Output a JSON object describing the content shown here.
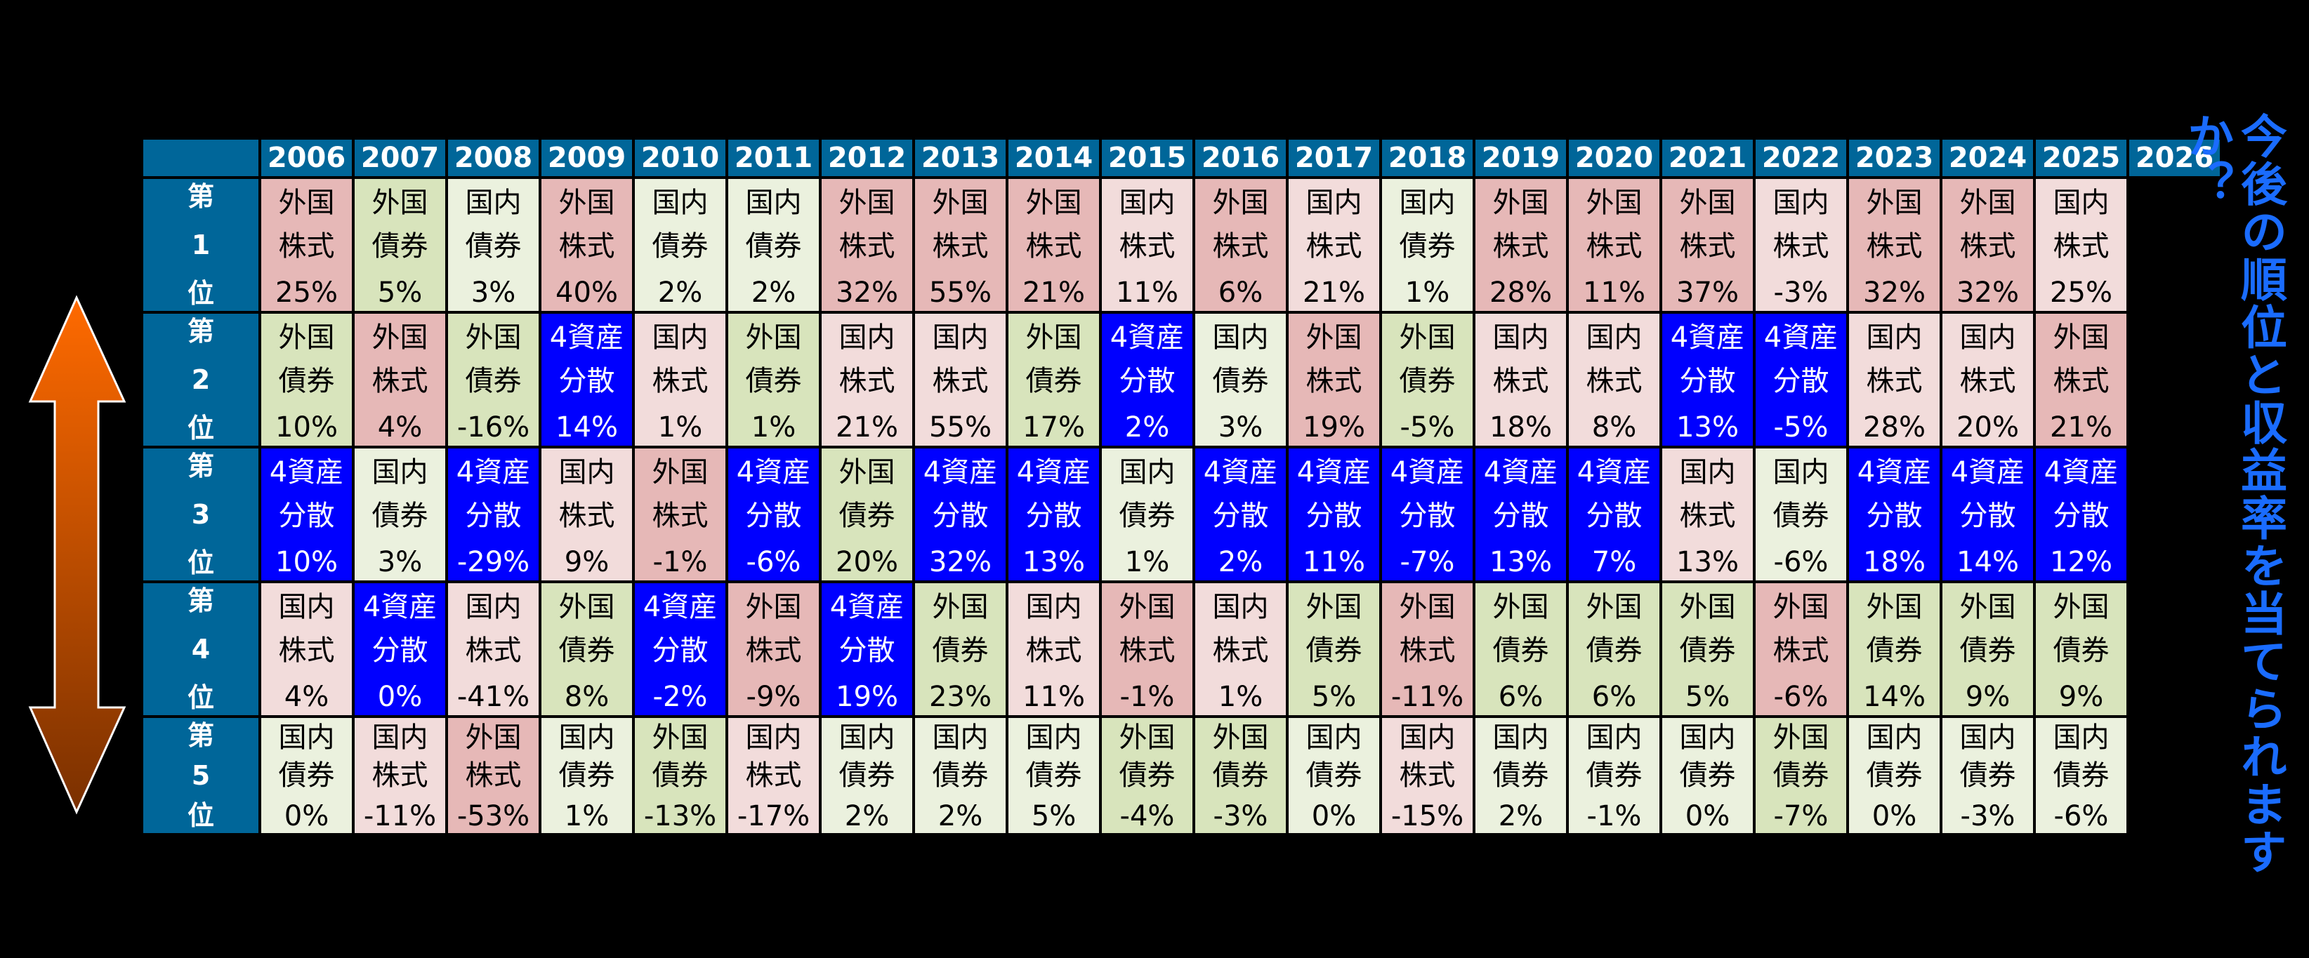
{
  "colors": {
    "header_bg": "#006699",
    "foreign_stock": "#e6b8b7",
    "domestic_stock": "#f2dcdb",
    "foreign_bond": "#d8e4bc",
    "domestic_bond": "#ebf1de",
    "four_asset": "#0000ff",
    "title_text": "#1a6cff",
    "arrow_top": "#ff6a00",
    "arrow_bottom": "#7a3000"
  },
  "side_title": "今後の順位と収益率を当てられますか？",
  "ranks": [
    {
      "c1": "第",
      "c2": "1",
      "c3": "位"
    },
    {
      "c1": "第",
      "c2": "2",
      "c3": "位"
    },
    {
      "c1": "第",
      "c2": "3",
      "c3": "位"
    },
    {
      "c1": "第",
      "c2": "4",
      "c3": "位"
    },
    {
      "c1": "第",
      "c2": "5",
      "c3": "位"
    }
  ],
  "chart_data": {
    "type": "table",
    "title": "今後の順位と収益率を当てられますか？",
    "description": "Annual return ranking of asset classes (1st to 5th) by year",
    "legend": {
      "fs": "外国株式",
      "ds": "国内株式",
      "fb": "外国債券",
      "db": "国内債券",
      "4a": "4資産分散"
    },
    "years": [
      "2006",
      "2007",
      "2008",
      "2009",
      "2010",
      "2011",
      "2012",
      "2013",
      "2014",
      "2015",
      "2016",
      "2017",
      "2018",
      "2019",
      "2020",
      "2021",
      "2022",
      "2023",
      "2024",
      "2025",
      "2026"
    ],
    "rows": [
      {
        "rank": "第1位",
        "cells": [
          {
            "a": "fs",
            "l1": "外国",
            "l2": "株式",
            "v": "25%"
          },
          {
            "a": "fb",
            "l1": "外国",
            "l2": "債券",
            "v": "5%"
          },
          {
            "a": "db",
            "l1": "国内",
            "l2": "債券",
            "v": "3%"
          },
          {
            "a": "fs",
            "l1": "外国",
            "l2": "株式",
            "v": "40%"
          },
          {
            "a": "db",
            "l1": "国内",
            "l2": "債券",
            "v": "2%"
          },
          {
            "a": "db",
            "l1": "国内",
            "l2": "債券",
            "v": "2%"
          },
          {
            "a": "fs",
            "l1": "外国",
            "l2": "株式",
            "v": "32%"
          },
          {
            "a": "fs",
            "l1": "外国",
            "l2": "株式",
            "v": "55%"
          },
          {
            "a": "fs",
            "l1": "外国",
            "l2": "株式",
            "v": "21%"
          },
          {
            "a": "ds",
            "l1": "国内",
            "l2": "株式",
            "v": "11%"
          },
          {
            "a": "fs",
            "l1": "外国",
            "l2": "株式",
            "v": "6%"
          },
          {
            "a": "ds",
            "l1": "国内",
            "l2": "株式",
            "v": "21%"
          },
          {
            "a": "db",
            "l1": "国内",
            "l2": "債券",
            "v": "1%"
          },
          {
            "a": "fs",
            "l1": "外国",
            "l2": "株式",
            "v": "28%"
          },
          {
            "a": "fs",
            "l1": "外国",
            "l2": "株式",
            "v": "11%"
          },
          {
            "a": "fs",
            "l1": "外国",
            "l2": "株式",
            "v": "37%"
          },
          {
            "a": "ds",
            "l1": "国内",
            "l2": "株式",
            "v": "-3%"
          },
          {
            "a": "fs",
            "l1": "外国",
            "l2": "株式",
            "v": "32%"
          },
          {
            "a": "fs",
            "l1": "外国",
            "l2": "株式",
            "v": "32%"
          },
          {
            "a": "ds",
            "l1": "国内",
            "l2": "株式",
            "v": "25%"
          }
        ]
      },
      {
        "rank": "第2位",
        "cells": [
          {
            "a": "fb",
            "l1": "外国",
            "l2": "債券",
            "v": "10%"
          },
          {
            "a": "fs",
            "l1": "外国",
            "l2": "株式",
            "v": "4%"
          },
          {
            "a": "fb",
            "l1": "外国",
            "l2": "債券",
            "v": "-16%"
          },
          {
            "a": "4a",
            "l1": "4資産",
            "l2": "分散",
            "v": "14%"
          },
          {
            "a": "ds",
            "l1": "国内",
            "l2": "株式",
            "v": "1%"
          },
          {
            "a": "fb",
            "l1": "外国",
            "l2": "債券",
            "v": "1%"
          },
          {
            "a": "ds",
            "l1": "国内",
            "l2": "株式",
            "v": "21%"
          },
          {
            "a": "ds",
            "l1": "国内",
            "l2": "株式",
            "v": "55%"
          },
          {
            "a": "fb",
            "l1": "外国",
            "l2": "債券",
            "v": "17%"
          },
          {
            "a": "4a",
            "l1": "4資産",
            "l2": "分散",
            "v": "2%"
          },
          {
            "a": "db",
            "l1": "国内",
            "l2": "債券",
            "v": "3%"
          },
          {
            "a": "fs",
            "l1": "外国",
            "l2": "株式",
            "v": "19%"
          },
          {
            "a": "fb",
            "l1": "外国",
            "l2": "債券",
            "v": "-5%"
          },
          {
            "a": "ds",
            "l1": "国内",
            "l2": "株式",
            "v": "18%"
          },
          {
            "a": "ds",
            "l1": "国内",
            "l2": "株式",
            "v": "8%"
          },
          {
            "a": "4a",
            "l1": "4資産",
            "l2": "分散",
            "v": "13%"
          },
          {
            "a": "4a",
            "l1": "4資産",
            "l2": "分散",
            "v": "-5%"
          },
          {
            "a": "ds",
            "l1": "国内",
            "l2": "株式",
            "v": "28%"
          },
          {
            "a": "ds",
            "l1": "国内",
            "l2": "株式",
            "v": "20%"
          },
          {
            "a": "fs",
            "l1": "外国",
            "l2": "株式",
            "v": "21%"
          }
        ]
      },
      {
        "rank": "第3位",
        "cells": [
          {
            "a": "4a",
            "l1": "4資産",
            "l2": "分散",
            "v": "10%"
          },
          {
            "a": "db",
            "l1": "国内",
            "l2": "債券",
            "v": "3%"
          },
          {
            "a": "4a",
            "l1": "4資産",
            "l2": "分散",
            "v": "-29%"
          },
          {
            "a": "ds",
            "l1": "国内",
            "l2": "株式",
            "v": "9%"
          },
          {
            "a": "fs",
            "l1": "外国",
            "l2": "株式",
            "v": "-1%"
          },
          {
            "a": "4a",
            "l1": "4資産",
            "l2": "分散",
            "v": "-6%"
          },
          {
            "a": "fb",
            "l1": "外国",
            "l2": "債券",
            "v": "20%"
          },
          {
            "a": "4a",
            "l1": "4資産",
            "l2": "分散",
            "v": "32%"
          },
          {
            "a": "4a",
            "l1": "4資産",
            "l2": "分散",
            "v": "13%"
          },
          {
            "a": "db",
            "l1": "国内",
            "l2": "債券",
            "v": "1%"
          },
          {
            "a": "4a",
            "l1": "4資産",
            "l2": "分散",
            "v": "2%"
          },
          {
            "a": "4a",
            "l1": "4資産",
            "l2": "分散",
            "v": "11%"
          },
          {
            "a": "4a",
            "l1": "4資産",
            "l2": "分散",
            "v": "-7%"
          },
          {
            "a": "4a",
            "l1": "4資産",
            "l2": "分散",
            "v": "13%"
          },
          {
            "a": "4a",
            "l1": "4資産",
            "l2": "分散",
            "v": "7%"
          },
          {
            "a": "ds",
            "l1": "国内",
            "l2": "株式",
            "v": "13%"
          },
          {
            "a": "db",
            "l1": "国内",
            "l2": "債券",
            "v": "-6%"
          },
          {
            "a": "4a",
            "l1": "4資産",
            "l2": "分散",
            "v": "18%"
          },
          {
            "a": "4a",
            "l1": "4資産",
            "l2": "分散",
            "v": "14%"
          },
          {
            "a": "4a",
            "l1": "4資産",
            "l2": "分散",
            "v": "12%"
          }
        ]
      },
      {
        "rank": "第4位",
        "cells": [
          {
            "a": "ds",
            "l1": "国内",
            "l2": "株式",
            "v": "4%"
          },
          {
            "a": "4a",
            "l1": "4資産",
            "l2": "分散",
            "v": "0%"
          },
          {
            "a": "ds",
            "l1": "国内",
            "l2": "株式",
            "v": "-41%"
          },
          {
            "a": "fb",
            "l1": "外国",
            "l2": "債券",
            "v": "8%"
          },
          {
            "a": "4a",
            "l1": "4資産",
            "l2": "分散",
            "v": "-2%"
          },
          {
            "a": "fs",
            "l1": "外国",
            "l2": "株式",
            "v": "-9%"
          },
          {
            "a": "4a",
            "l1": "4資産",
            "l2": "分散",
            "v": "19%"
          },
          {
            "a": "fb",
            "l1": "外国",
            "l2": "債券",
            "v": "23%"
          },
          {
            "a": "ds",
            "l1": "国内",
            "l2": "株式",
            "v": "11%"
          },
          {
            "a": "fs",
            "l1": "外国",
            "l2": "株式",
            "v": "-1%"
          },
          {
            "a": "ds",
            "l1": "国内",
            "l2": "株式",
            "v": "1%"
          },
          {
            "a": "fb",
            "l1": "外国",
            "l2": "債券",
            "v": "5%"
          },
          {
            "a": "fs",
            "l1": "外国",
            "l2": "株式",
            "v": "-11%"
          },
          {
            "a": "fb",
            "l1": "外国",
            "l2": "債券",
            "v": "6%"
          },
          {
            "a": "fb",
            "l1": "外国",
            "l2": "債券",
            "v": "6%"
          },
          {
            "a": "fb",
            "l1": "外国",
            "l2": "債券",
            "v": "5%"
          },
          {
            "a": "fs",
            "l1": "外国",
            "l2": "株式",
            "v": "-6%"
          },
          {
            "a": "fb",
            "l1": "外国",
            "l2": "債券",
            "v": "14%"
          },
          {
            "a": "fb",
            "l1": "外国",
            "l2": "債券",
            "v": "9%"
          },
          {
            "a": "fb",
            "l1": "外国",
            "l2": "債券",
            "v": "9%"
          }
        ]
      },
      {
        "rank": "第5位",
        "cells": [
          {
            "a": "db",
            "l1": "国内",
            "l2": "債券",
            "v": "0%"
          },
          {
            "a": "ds",
            "l1": "国内",
            "l2": "株式",
            "v": "-11%"
          },
          {
            "a": "fs",
            "l1": "外国",
            "l2": "株式",
            "v": "-53%"
          },
          {
            "a": "db",
            "l1": "国内",
            "l2": "債券",
            "v": "1%"
          },
          {
            "a": "fb",
            "l1": "外国",
            "l2": "債券",
            "v": "-13%"
          },
          {
            "a": "ds",
            "l1": "国内",
            "l2": "株式",
            "v": "-17%"
          },
          {
            "a": "db",
            "l1": "国内",
            "l2": "債券",
            "v": "2%"
          },
          {
            "a": "db",
            "l1": "国内",
            "l2": "債券",
            "v": "2%"
          },
          {
            "a": "db",
            "l1": "国内",
            "l2": "債券",
            "v": "5%"
          },
          {
            "a": "fb",
            "l1": "外国",
            "l2": "債券",
            "v": "-4%"
          },
          {
            "a": "fb",
            "l1": "外国",
            "l2": "債券",
            "v": "-3%"
          },
          {
            "a": "db",
            "l1": "国内",
            "l2": "債券",
            "v": "0%"
          },
          {
            "a": "ds",
            "l1": "国内",
            "l2": "株式",
            "v": "-15%"
          },
          {
            "a": "db",
            "l1": "国内",
            "l2": "債券",
            "v": "2%"
          },
          {
            "a": "db",
            "l1": "国内",
            "l2": "債券",
            "v": "-1%"
          },
          {
            "a": "db",
            "l1": "国内",
            "l2": "債券",
            "v": "0%"
          },
          {
            "a": "fb",
            "l1": "外国",
            "l2": "債券",
            "v": "-7%"
          },
          {
            "a": "db",
            "l1": "国内",
            "l2": "債券",
            "v": "0%"
          },
          {
            "a": "db",
            "l1": "国内",
            "l2": "債券",
            "v": "-3%"
          },
          {
            "a": "db",
            "l1": "国内",
            "l2": "債券",
            "v": "-6%"
          }
        ]
      }
    ]
  }
}
